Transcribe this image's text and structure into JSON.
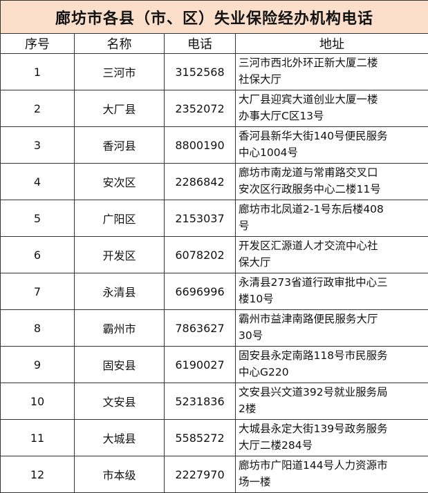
{
  "title": "廊坊市各县（市、区）失业保险经办机构电话",
  "headers": [
    "序号",
    "名称",
    "电话",
    "地址"
  ],
  "rows": [
    {
      "no": "1",
      "name": "三河市",
      "phone": "3152568",
      "address": [
        "三河市西北外环正新大厦二楼",
        "社保大厅"
      ]
    },
    {
      "no": "2",
      "name": "大厂县",
      "phone": "2352072",
      "address": [
        "大厂县迎宾大道创业大厦一楼",
        "办事大厅C区13号"
      ]
    },
    {
      "no": "3",
      "name": "香河县",
      "phone": "8800190",
      "address": [
        "香河县新华大街140号便民服务",
        "中心1004号"
      ]
    },
    {
      "no": "4",
      "name": "安次区",
      "phone": "2286842",
      "address": [
        "廊坊市南龙道与常甫路交叉口",
        "安次区行政服务中心二楼11号"
      ]
    },
    {
      "no": "5",
      "name": "广阳区",
      "phone": "2153037",
      "address": [
        "廊坊市北凤道2-1号东后楼408",
        "号"
      ]
    },
    {
      "no": "6",
      "name": "开发区",
      "phone": "6078202",
      "address": [
        "开发区汇源道人才交流中心社",
        "保大厅"
      ]
    },
    {
      "no": "7",
      "name": "永清县",
      "phone": "6696996",
      "address": [
        "永清县273省道行政审批中心三",
        "楼10号"
      ]
    },
    {
      "no": "8",
      "name": "霸州市",
      "phone": "7863627",
      "address": [
        "霸州市益津南路便民服务大厅",
        "30号"
      ]
    },
    {
      "no": "9",
      "name": "固安县",
      "phone": "6190027",
      "address": [
        "固安县永定南路118号市民服务",
        "中心G220"
      ]
    },
    {
      "no": "10",
      "name": "文安县",
      "phone": "5231836",
      "address": [
        "文安县兴文道392号就业服务局",
        "2楼"
      ]
    },
    {
      "no": "11",
      "name": "大城县",
      "phone": "5585272",
      "address": [
        "大城县永定大街139号政务服务",
        "大厅二楼284号"
      ]
    },
    {
      "no": "12",
      "name": "市本级",
      "phone": "2227970",
      "address": [
        "廊坊市广阳道144号人力资源市",
        "场一楼"
      ]
    }
  ],
  "colors": {
    "title_background": "#fbdfca",
    "border": "#333333"
  }
}
